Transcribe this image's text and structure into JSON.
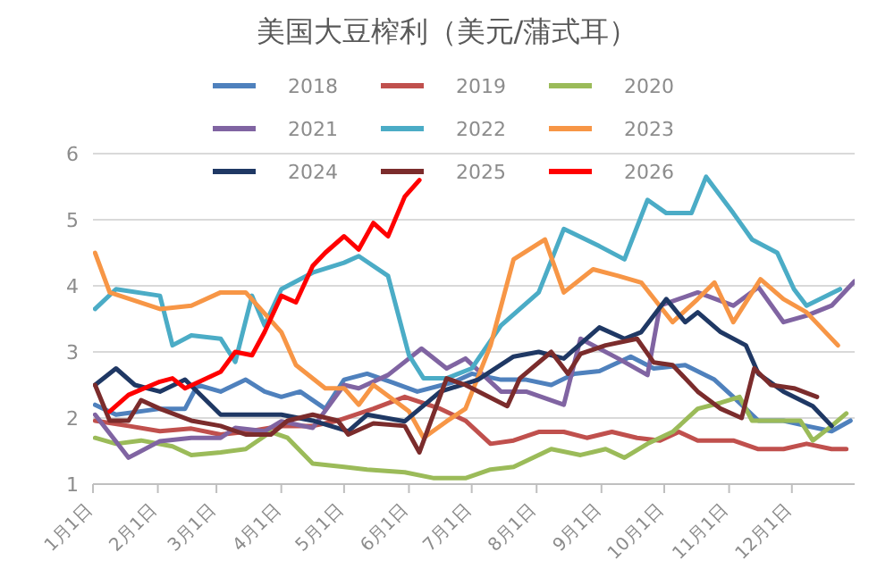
{
  "chart_data": {
    "type": "line",
    "title": "美国大豆榨利（美元/蒲式耳）",
    "ylim": [
      1,
      6
    ],
    "yticks": [
      1,
      2,
      3,
      4,
      5,
      6
    ],
    "xlim": [
      "--01-01",
      "--12-31"
    ],
    "xticks": [
      {
        "value": "--01-01",
        "label": "1月1日"
      },
      {
        "value": "--02-01",
        "label": "2月1日"
      },
      {
        "value": "--03-01",
        "label": "3月1日"
      },
      {
        "value": "--04-01",
        "label": "4月1日"
      },
      {
        "value": "--05-01",
        "label": "5月1日"
      },
      {
        "value": "--06-01",
        "label": "6月1日"
      },
      {
        "value": "--07-01",
        "label": "7月1日"
      },
      {
        "value": "--08-01",
        "label": "8月1日"
      },
      {
        "value": "--09-01",
        "label": "9月1日"
      },
      {
        "value": "--10-01",
        "label": "10月1日"
      },
      {
        "value": "--11-01",
        "label": "11月1日"
      },
      {
        "value": "--12-01",
        "label": "12月1日"
      }
    ],
    "grid": "y",
    "legend": "top",
    "marker": "none",
    "line_style": "solid",
    "series": [
      {
        "name": "2018",
        "color": "#4f81bd",
        "x": [
          "--01-02",
          "--01-12",
          "--02-02",
          "--02-14",
          "--02-20",
          "--03-03",
          "--03-15",
          "--03-24",
          "--04-01",
          "--04-10",
          "--04-22",
          "--05-01",
          "--05-12",
          "--05-24",
          "--06-05",
          "--06-22",
          "--07-01",
          "--07-15",
          "--07-27",
          "--08-08",
          "--08-19",
          "--08-31",
          "--09-15",
          "--09-26",
          "--10-11",
          "--10-25",
          "--11-03",
          "--11-15",
          "--11-27",
          "--12-08",
          "--12-20",
          "--12-29"
        ],
        "values": [
          2.2,
          2.05,
          2.14,
          2.14,
          2.5,
          2.4,
          2.58,
          2.4,
          2.32,
          2.4,
          2.14,
          2.58,
          2.67,
          2.54,
          2.4,
          2.54,
          2.67,
          2.58,
          2.58,
          2.5,
          2.67,
          2.71,
          2.93,
          2.75,
          2.8,
          2.58,
          2.32,
          1.96,
          1.96,
          1.88,
          1.8,
          1.96
        ]
      },
      {
        "name": "2019",
        "color": "#c0504d",
        "x": [
          "--01-02",
          "--01-18",
          "--02-02",
          "--02-17",
          "--03-03",
          "--03-15",
          "--04-01",
          "--04-16",
          "--04-28",
          "--05-15",
          "--05-30",
          "--06-16",
          "--06-28",
          "--07-10",
          "--07-21",
          "--08-02",
          "--08-14",
          "--08-25",
          "--09-06",
          "--09-18",
          "--09-29",
          "--10-08",
          "--10-17",
          "--11-03",
          "--11-15",
          "--11-27",
          "--12-08",
          "--12-20",
          "--12-27"
        ],
        "values": [
          1.96,
          1.88,
          1.8,
          1.84,
          1.75,
          1.79,
          1.88,
          1.88,
          1.96,
          2.14,
          2.32,
          2.14,
          1.96,
          1.61,
          1.66,
          1.79,
          1.79,
          1.7,
          1.79,
          1.7,
          1.66,
          1.79,
          1.66,
          1.66,
          1.53,
          1.53,
          1.61,
          1.53,
          1.53
        ]
      },
      {
        "name": "2020",
        "color": "#9bbb59",
        "x": [
          "--01-02",
          "--01-12",
          "--01-24",
          "--02-08",
          "--02-17",
          "--03-03",
          "--03-15",
          "--03-27",
          "--04-04",
          "--04-16",
          "--05-01",
          "--05-12",
          "--05-30",
          "--06-13",
          "--06-28",
          "--07-10",
          "--07-21",
          "--08-08",
          "--08-22",
          "--09-03",
          "--09-12",
          "--09-23",
          "--10-05",
          "--10-17",
          "--10-28",
          "--11-06",
          "--11-12",
          "--11-27",
          "--12-05",
          "--12-11",
          "--12-20",
          "--12-27"
        ],
        "values": [
          1.7,
          1.61,
          1.66,
          1.57,
          1.44,
          1.48,
          1.53,
          1.79,
          1.7,
          1.31,
          1.26,
          1.22,
          1.18,
          1.09,
          1.09,
          1.22,
          1.26,
          1.53,
          1.44,
          1.53,
          1.4,
          1.61,
          1.79,
          2.14,
          2.23,
          2.32,
          1.96,
          1.96,
          1.96,
          1.66,
          1.88,
          2.07
        ]
      },
      {
        "name": "2021",
        "color": "#8064a2",
        "x": [
          "--01-02",
          "--01-18",
          "--02-02",
          "--02-17",
          "--03-03",
          "--03-10",
          "--03-24",
          "--04-01",
          "--04-16",
          "--05-01",
          "--05-08",
          "--05-22",
          "--05-30",
          "--06-07",
          "--06-19",
          "--06-28",
          "--07-15",
          "--07-27",
          "--08-14",
          "--08-22",
          "--09-09",
          "--09-23",
          "--09-29",
          "--10-17",
          "--11-03",
          "--11-15",
          "--11-27",
          "--12-08",
          "--12-20",
          "--12-31"
        ],
        "values": [
          2.05,
          1.4,
          1.65,
          1.7,
          1.7,
          1.85,
          1.8,
          1.95,
          1.85,
          2.5,
          2.45,
          2.65,
          2.85,
          3.05,
          2.75,
          2.9,
          2.4,
          2.4,
          2.2,
          3.2,
          2.9,
          2.65,
          3.7,
          3.9,
          3.7,
          3.98,
          3.45,
          3.55,
          3.7,
          4.07
        ]
      },
      {
        "name": "2022",
        "color": "#4bacc6",
        "x": [
          "--01-02",
          "--01-12",
          "--02-02",
          "--02-08",
          "--02-17",
          "--03-03",
          "--03-10",
          "--03-18",
          "--03-24",
          "--04-01",
          "--04-16",
          "--05-01",
          "--05-08",
          "--05-22",
          "--06-01",
          "--06-08",
          "--06-19",
          "--07-01",
          "--07-15",
          "--08-02",
          "--08-14",
          "--08-31",
          "--09-12",
          "--09-23",
          "--10-02",
          "--10-14",
          "--10-21",
          "--11-03",
          "--11-12",
          "--11-24",
          "--12-02",
          "--12-08",
          "--12-24"
        ],
        "values": [
          3.65,
          3.95,
          3.85,
          3.1,
          3.25,
          3.2,
          2.85,
          3.85,
          3.4,
          3.95,
          4.2,
          4.35,
          4.45,
          4.15,
          2.95,
          2.6,
          2.6,
          2.75,
          3.4,
          3.9,
          4.86,
          4.6,
          4.4,
          5.3,
          5.1,
          5.1,
          5.65,
          5.1,
          4.7,
          4.5,
          3.95,
          3.7,
          3.95
        ]
      },
      {
        "name": "2023",
        "color": "#f79646",
        "x": [
          "--01-02",
          "--01-09",
          "--02-02",
          "--02-17",
          "--03-03",
          "--03-15",
          "--04-01",
          "--04-08",
          "--04-22",
          "--05-01",
          "--05-08",
          "--05-15",
          "--06-01",
          "--06-08",
          "--06-19",
          "--06-28",
          "--07-10",
          "--07-21",
          "--08-05",
          "--08-14",
          "--08-28",
          "--09-09",
          "--09-20",
          "--10-05",
          "--10-17",
          "--10-25",
          "--11-03",
          "--11-16",
          "--11-27",
          "--12-08",
          "--12-23"
        ],
        "values": [
          4.5,
          3.9,
          3.65,
          3.7,
          3.9,
          3.9,
          3.3,
          2.8,
          2.45,
          2.45,
          2.2,
          2.5,
          2.1,
          1.7,
          1.95,
          2.14,
          3.1,
          4.4,
          4.7,
          3.9,
          4.25,
          4.15,
          4.05,
          3.45,
          3.8,
          4.05,
          3.45,
          4.1,
          3.8,
          3.6,
          3.1
        ]
      },
      {
        "name": "2024",
        "color": "#1f3864",
        "x": [
          "--01-02",
          "--01-12",
          "--01-21",
          "--02-02",
          "--02-14",
          "--03-03",
          "--03-18",
          "--04-01",
          "--04-16",
          "--05-03",
          "--05-12",
          "--05-30",
          "--06-16",
          "--07-04",
          "--07-21",
          "--08-02",
          "--08-14",
          "--08-31",
          "--09-12",
          "--09-20",
          "--10-02",
          "--10-11",
          "--10-17",
          "--10-28",
          "--11-09",
          "--11-15",
          "--11-27",
          "--12-11",
          "--12-20"
        ],
        "values": [
          2.5,
          2.75,
          2.5,
          2.4,
          2.58,
          2.05,
          2.05,
          2.05,
          1.96,
          1.8,
          2.05,
          1.95,
          2.4,
          2.58,
          2.93,
          3.0,
          2.9,
          3.37,
          3.2,
          3.3,
          3.8,
          3.45,
          3.6,
          3.3,
          3.1,
          2.67,
          2.4,
          2.18,
          1.88
        ]
      },
      {
        "name": "2025",
        "color": "#7b2c2c",
        "x": [
          "--01-02",
          "--01-09",
          "--01-18",
          "--01-24",
          "--02-02",
          "--02-17",
          "--03-03",
          "--03-15",
          "--03-27",
          "--04-04",
          "--04-16",
          "--04-28",
          "--05-03",
          "--05-15",
          "--05-30",
          "--06-06",
          "--06-19",
          "--06-28",
          "--07-18",
          "--07-24",
          "--08-08",
          "--08-16",
          "--08-22",
          "--09-03",
          "--09-18",
          "--09-26",
          "--10-05",
          "--10-17",
          "--10-28",
          "--11-07",
          "--11-13",
          "--11-21",
          "--12-02",
          "--12-13"
        ],
        "values": [
          2.5,
          1.96,
          1.96,
          2.27,
          2.14,
          1.96,
          1.88,
          1.75,
          1.75,
          1.96,
          2.05,
          1.96,
          1.75,
          1.92,
          1.88,
          1.48,
          2.6,
          2.5,
          2.18,
          2.6,
          3.0,
          2.67,
          2.97,
          3.1,
          3.2,
          2.84,
          2.8,
          2.4,
          2.14,
          2.0,
          2.75,
          2.5,
          2.45,
          2.32
        ]
      },
      {
        "name": "2026",
        "color": "#ff0000",
        "x": [
          "--01-09",
          "--01-18",
          "--02-02",
          "--02-08",
          "--02-14",
          "--03-03",
          "--03-10",
          "--03-18",
          "--03-24",
          "--04-01",
          "--04-08",
          "--04-16",
          "--04-22",
          "--05-01",
          "--05-08",
          "--05-15",
          "--05-22",
          "--05-30",
          "--06-06"
        ],
        "values": [
          2.1,
          2.35,
          2.55,
          2.6,
          2.45,
          2.7,
          3.0,
          2.95,
          3.3,
          3.85,
          3.75,
          4.3,
          4.5,
          4.75,
          4.55,
          4.95,
          4.75,
          5.35,
          5.6
        ]
      }
    ]
  }
}
